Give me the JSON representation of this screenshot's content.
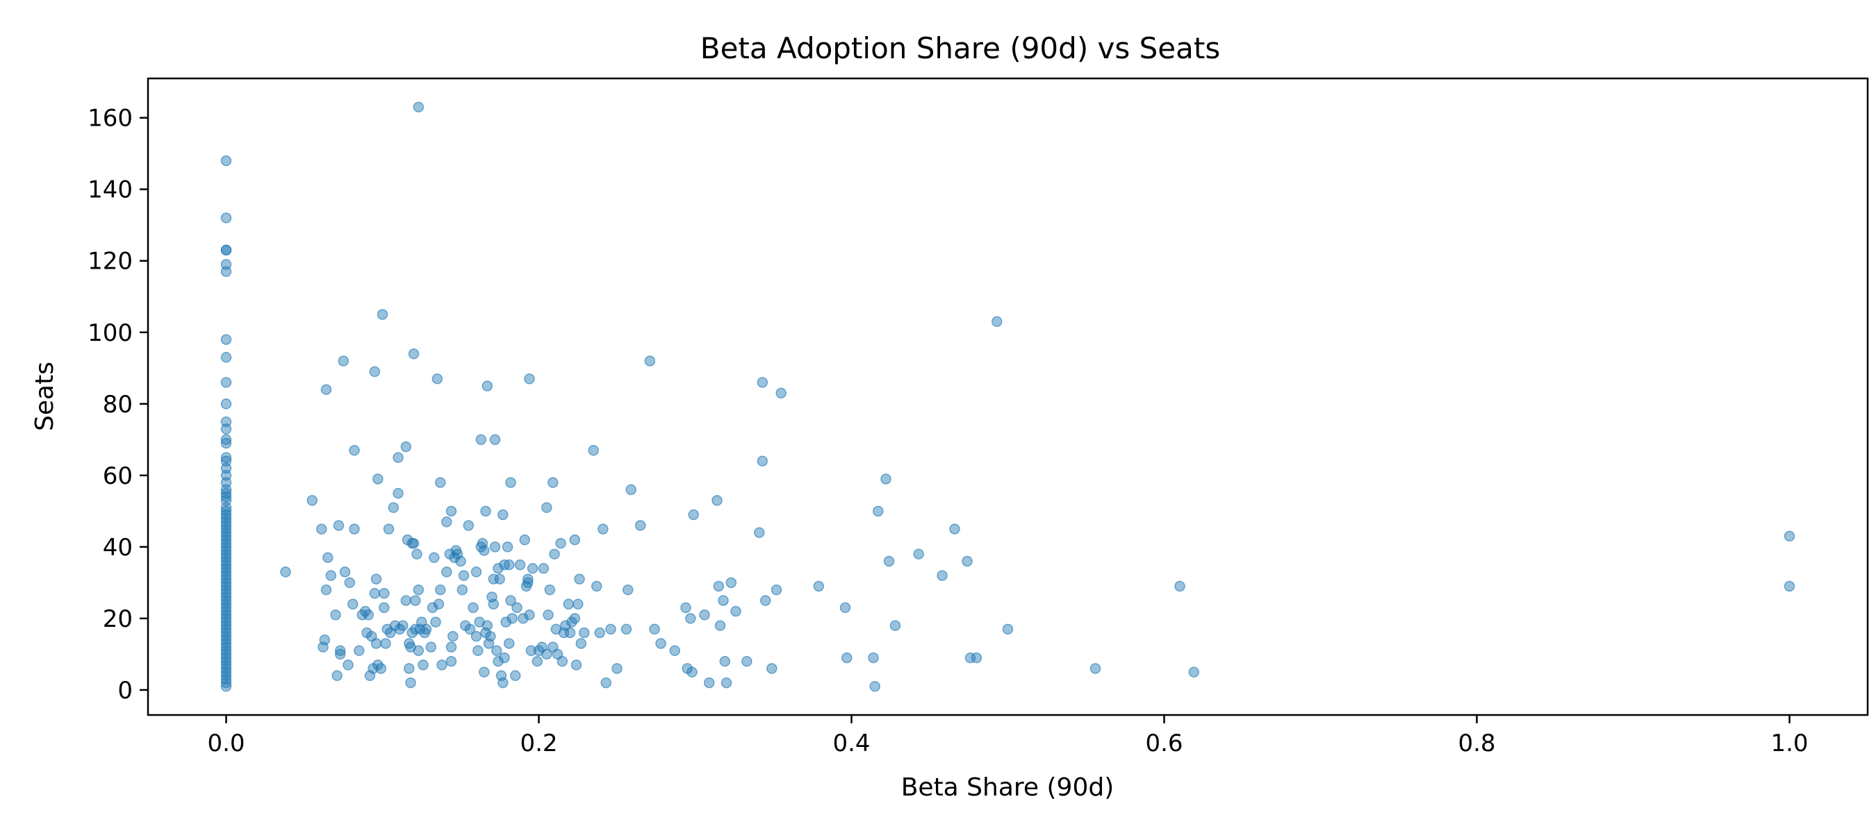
{
  "chart_data": {
    "type": "scatter",
    "title": "Beta Adoption Share (90d) vs Seats",
    "xlabel": "Beta Share (90d)",
    "ylabel": "Seats",
    "xlim": [
      -0.05,
      1.05
    ],
    "ylim": [
      -7,
      171
    ],
    "xticks": [
      0.0,
      0.2,
      0.4,
      0.6,
      0.8,
      1.0
    ],
    "xtick_labels": [
      "0.0",
      "0.2",
      "0.4",
      "0.6",
      "0.8",
      "1.0"
    ],
    "yticks": [
      0,
      20,
      40,
      60,
      80,
      100,
      120,
      140,
      160
    ],
    "ytick_labels": [
      "0",
      "20",
      "40",
      "60",
      "80",
      "100",
      "120",
      "140",
      "160"
    ],
    "grid": false,
    "legend": "none",
    "marker_color": "#1f77b4",
    "marker_alpha": 0.45,
    "series": [
      {
        "points": [
          [
            0,
            148
          ],
          [
            0,
            132
          ],
          [
            0,
            123
          ],
          [
            0,
            123
          ],
          [
            0,
            119
          ],
          [
            0,
            117
          ],
          [
            0,
            98
          ],
          [
            0,
            93
          ],
          [
            0,
            86
          ],
          [
            0,
            80
          ],
          [
            0,
            75
          ],
          [
            0,
            73
          ],
          [
            0,
            70
          ],
          [
            0,
            69
          ],
          [
            0,
            65
          ],
          [
            0,
            64
          ],
          [
            0,
            62
          ],
          [
            0,
            60
          ],
          [
            0,
            58
          ],
          [
            0,
            56
          ],
          [
            0,
            55
          ],
          [
            0,
            54
          ],
          [
            0,
            53
          ],
          [
            0,
            51
          ],
          [
            0,
            50
          ],
          [
            0,
            49
          ],
          [
            0,
            48
          ],
          [
            0,
            47
          ],
          [
            0,
            46
          ],
          [
            0,
            45
          ],
          [
            0,
            44
          ],
          [
            0,
            43
          ],
          [
            0,
            42
          ],
          [
            0,
            41
          ],
          [
            0,
            40
          ],
          [
            0,
            39
          ],
          [
            0,
            38
          ],
          [
            0,
            37
          ],
          [
            0,
            36
          ],
          [
            0,
            35
          ],
          [
            0,
            34
          ],
          [
            0,
            33
          ],
          [
            0,
            32
          ],
          [
            0,
            31
          ],
          [
            0,
            30
          ],
          [
            0,
            29
          ],
          [
            0,
            28
          ],
          [
            0,
            27
          ],
          [
            0,
            26
          ],
          [
            0,
            25
          ],
          [
            0,
            24
          ],
          [
            0,
            23
          ],
          [
            0,
            22
          ],
          [
            0,
            21
          ],
          [
            0,
            20
          ],
          [
            0,
            19
          ],
          [
            0,
            18
          ],
          [
            0,
            17
          ],
          [
            0,
            16
          ],
          [
            0,
            15
          ],
          [
            0,
            14
          ],
          [
            0,
            13
          ],
          [
            0,
            12
          ],
          [
            0,
            11
          ],
          [
            0,
            10
          ],
          [
            0,
            9
          ],
          [
            0,
            8
          ],
          [
            0,
            7
          ],
          [
            0,
            6
          ],
          [
            0,
            5
          ],
          [
            0,
            4
          ],
          [
            0,
            3
          ],
          [
            0,
            2
          ],
          [
            0,
            1
          ],
          [
            0.038,
            33
          ],
          [
            0.055,
            53
          ],
          [
            0.061,
            45
          ],
          [
            0.062,
            12
          ],
          [
            0.063,
            14
          ],
          [
            0.064,
            84
          ],
          [
            0.064,
            28
          ],
          [
            0.065,
            37
          ],
          [
            0.067,
            32
          ],
          [
            0.07,
            21
          ],
          [
            0.071,
            4
          ],
          [
            0.072,
            46
          ],
          [
            0.073,
            11
          ],
          [
            0.073,
            10
          ],
          [
            0.075,
            92
          ],
          [
            0.076,
            33
          ],
          [
            0.078,
            7
          ],
          [
            0.079,
            30
          ],
          [
            0.081,
            24
          ],
          [
            0.082,
            67
          ],
          [
            0.082,
            45
          ],
          [
            0.085,
            11
          ],
          [
            0.087,
            21
          ],
          [
            0.089,
            22
          ],
          [
            0.09,
            16
          ],
          [
            0.091,
            21
          ],
          [
            0.092,
            4
          ],
          [
            0.093,
            15
          ],
          [
            0.094,
            6
          ],
          [
            0.095,
            89
          ],
          [
            0.095,
            27
          ],
          [
            0.096,
            13
          ],
          [
            0.096,
            31
          ],
          [
            0.097,
            59
          ],
          [
            0.097,
            7
          ],
          [
            0.099,
            6
          ],
          [
            0.1,
            105
          ],
          [
            0.101,
            27
          ],
          [
            0.101,
            23
          ],
          [
            0.102,
            13
          ],
          [
            0.103,
            17
          ],
          [
            0.104,
            45
          ],
          [
            0.105,
            16
          ],
          [
            0.107,
            51
          ],
          [
            0.108,
            18
          ],
          [
            0.11,
            65
          ],
          [
            0.11,
            55
          ],
          [
            0.111,
            17
          ],
          [
            0.113,
            18
          ],
          [
            0.115,
            68
          ],
          [
            0.115,
            25
          ],
          [
            0.116,
            42
          ],
          [
            0.117,
            6
          ],
          [
            0.117,
            13
          ],
          [
            0.118,
            2
          ],
          [
            0.118,
            12
          ],
          [
            0.119,
            41
          ],
          [
            0.119,
            16
          ],
          [
            0.12,
            94
          ],
          [
            0.12,
            41
          ],
          [
            0.121,
            25
          ],
          [
            0.121,
            17
          ],
          [
            0.122,
            38
          ],
          [
            0.123,
            163
          ],
          [
            0.123,
            28
          ],
          [
            0.123,
            11
          ],
          [
            0.124,
            17
          ],
          [
            0.125,
            19
          ],
          [
            0.126,
            7
          ],
          [
            0.127,
            16
          ],
          [
            0.128,
            17
          ],
          [
            0.131,
            12
          ],
          [
            0.132,
            23
          ],
          [
            0.133,
            37
          ],
          [
            0.134,
            19
          ],
          [
            0.135,
            87
          ],
          [
            0.136,
            24
          ],
          [
            0.137,
            58
          ],
          [
            0.137,
            28
          ],
          [
            0.138,
            7
          ],
          [
            0.141,
            47
          ],
          [
            0.141,
            33
          ],
          [
            0.143,
            38
          ],
          [
            0.144,
            50
          ],
          [
            0.144,
            12
          ],
          [
            0.144,
            8
          ],
          [
            0.145,
            15
          ],
          [
            0.146,
            37
          ],
          [
            0.147,
            39
          ],
          [
            0.148,
            38
          ],
          [
            0.15,
            36
          ],
          [
            0.151,
            28
          ],
          [
            0.152,
            32
          ],
          [
            0.153,
            18
          ],
          [
            0.155,
            46
          ],
          [
            0.156,
            17
          ],
          [
            0.158,
            23
          ],
          [
            0.16,
            15
          ],
          [
            0.16,
            33
          ],
          [
            0.161,
            11
          ],
          [
            0.162,
            19
          ],
          [
            0.163,
            70
          ],
          [
            0.163,
            40
          ],
          [
            0.164,
            41
          ],
          [
            0.165,
            39
          ],
          [
            0.165,
            5
          ],
          [
            0.166,
            16
          ],
          [
            0.166,
            50
          ],
          [
            0.167,
            85
          ],
          [
            0.167,
            18
          ],
          [
            0.168,
            13
          ],
          [
            0.169,
            15
          ],
          [
            0.17,
            26
          ],
          [
            0.171,
            31
          ],
          [
            0.171,
            24
          ],
          [
            0.172,
            40
          ],
          [
            0.172,
            70
          ],
          [
            0.173,
            11
          ],
          [
            0.174,
            34
          ],
          [
            0.174,
            8
          ],
          [
            0.175,
            31
          ],
          [
            0.176,
            4
          ],
          [
            0.177,
            2
          ],
          [
            0.177,
            49
          ],
          [
            0.178,
            9
          ],
          [
            0.178,
            35
          ],
          [
            0.179,
            19
          ],
          [
            0.18,
            40
          ],
          [
            0.181,
            13
          ],
          [
            0.181,
            35
          ],
          [
            0.182,
            25
          ],
          [
            0.182,
            58
          ],
          [
            0.183,
            20
          ],
          [
            0.185,
            4
          ],
          [
            0.186,
            23
          ],
          [
            0.188,
            35
          ],
          [
            0.19,
            20
          ],
          [
            0.191,
            42
          ],
          [
            0.192,
            29
          ],
          [
            0.193,
            31
          ],
          [
            0.193,
            30
          ],
          [
            0.194,
            87
          ],
          [
            0.194,
            21
          ],
          [
            0.195,
            11
          ],
          [
            0.196,
            34
          ],
          [
            0.199,
            8
          ],
          [
            0.2,
            11
          ],
          [
            0.202,
            12
          ],
          [
            0.203,
            34
          ],
          [
            0.205,
            51
          ],
          [
            0.205,
            10
          ],
          [
            0.206,
            21
          ],
          [
            0.207,
            28
          ],
          [
            0.209,
            12
          ],
          [
            0.209,
            58
          ],
          [
            0.21,
            38
          ],
          [
            0.211,
            17
          ],
          [
            0.212,
            10
          ],
          [
            0.214,
            41
          ],
          [
            0.215,
            8
          ],
          [
            0.216,
            16
          ],
          [
            0.217,
            18
          ],
          [
            0.219,
            24
          ],
          [
            0.22,
            16
          ],
          [
            0.221,
            19
          ],
          [
            0.223,
            42
          ],
          [
            0.223,
            20
          ],
          [
            0.224,
            7
          ],
          [
            0.225,
            24
          ],
          [
            0.226,
            31
          ],
          [
            0.227,
            13
          ],
          [
            0.229,
            16
          ],
          [
            0.235,
            67
          ],
          [
            0.237,
            29
          ],
          [
            0.239,
            16
          ],
          [
            0.241,
            45
          ],
          [
            0.243,
            2
          ],
          [
            0.246,
            17
          ],
          [
            0.25,
            6
          ],
          [
            0.256,
            17
          ],
          [
            0.257,
            28
          ],
          [
            0.259,
            56
          ],
          [
            0.265,
            46
          ],
          [
            0.271,
            92
          ],
          [
            0.274,
            17
          ],
          [
            0.278,
            13
          ],
          [
            0.287,
            11
          ],
          [
            0.294,
            23
          ],
          [
            0.295,
            6
          ],
          [
            0.297,
            20
          ],
          [
            0.298,
            5
          ],
          [
            0.299,
            49
          ],
          [
            0.306,
            21
          ],
          [
            0.309,
            2
          ],
          [
            0.314,
            53
          ],
          [
            0.315,
            29
          ],
          [
            0.316,
            18
          ],
          [
            0.318,
            25
          ],
          [
            0.319,
            8
          ],
          [
            0.32,
            2
          ],
          [
            0.323,
            30
          ],
          [
            0.326,
            22
          ],
          [
            0.333,
            8
          ],
          [
            0.341,
            44
          ],
          [
            0.343,
            86
          ],
          [
            0.343,
            64
          ],
          [
            0.345,
            25
          ],
          [
            0.349,
            6
          ],
          [
            0.352,
            28
          ],
          [
            0.355,
            83
          ],
          [
            0.379,
            29
          ],
          [
            0.396,
            23
          ],
          [
            0.397,
            9
          ],
          [
            0.414,
            9
          ],
          [
            0.415,
            1
          ],
          [
            0.417,
            50
          ],
          [
            0.422,
            59
          ],
          [
            0.424,
            36
          ],
          [
            0.428,
            18
          ],
          [
            0.443,
            38
          ],
          [
            0.458,
            32
          ],
          [
            0.466,
            45
          ],
          [
            0.474,
            36
          ],
          [
            0.476,
            9
          ],
          [
            0.48,
            9
          ],
          [
            0.493,
            103
          ],
          [
            0.5,
            17
          ],
          [
            0.556,
            6
          ],
          [
            0.61,
            29
          ],
          [
            0.619,
            5
          ],
          [
            1.0,
            43
          ],
          [
            1.0,
            29
          ]
        ]
      }
    ]
  }
}
